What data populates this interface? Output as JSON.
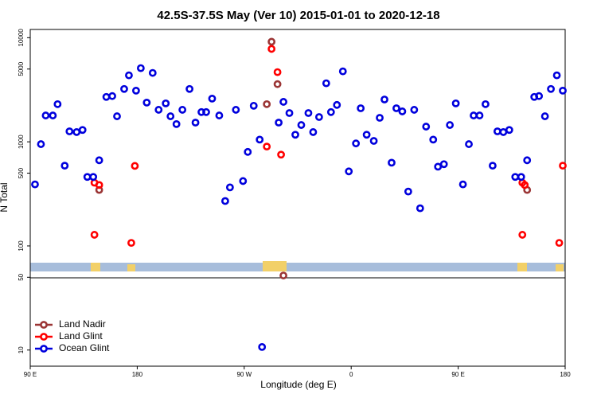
{
  "chart_data": {
    "type": "scatter",
    "title": "42.5S-37.5S May (Ver 10)   2015-01-01 to 2020-12-18",
    "x_label": "Longitude (deg E)",
    "y_label": "N Total",
    "log_y": true,
    "legend": "bottom-left",
    "xlim": [
      90,
      540
    ],
    "xticks": [
      {
        "value": 90,
        "label": "90 E"
      },
      {
        "value": 180,
        "label": "180"
      },
      {
        "value": 270,
        "label": "90 W"
      },
      {
        "value": 360,
        "label": "0"
      },
      {
        "value": 450,
        "label": "90 E"
      },
      {
        "value": 540,
        "label": "180"
      }
    ],
    "ylim": [
      7,
      12000
    ],
    "yticks": [
      10,
      50,
      100,
      500,
      1000,
      5000,
      10000
    ],
    "series": [
      {
        "name": "Land Nadir",
        "color": "#9b3535",
        "x": [
          148,
          289,
          293,
          298,
          303,
          508
        ],
        "values": [
          345,
          2300,
          9150,
          3580,
          52,
          345
        ]
      },
      {
        "name": "Land Glint",
        "color": "#ff0000",
        "x": [
          144,
          148,
          144,
          175,
          178,
          289,
          293,
          298,
          301,
          504,
          506,
          504,
          535,
          538
        ],
        "values": [
          405,
          385,
          128,
          107,
          587,
          900,
          7800,
          4670,
          753,
          405,
          385,
          128,
          107,
          590
        ]
      },
      {
        "name": "Ocean Glint",
        "color": "#0000dd",
        "x": [
          94,
          99,
          103,
          109,
          113,
          119,
          123,
          129,
          134,
          138,
          143,
          148,
          154,
          159,
          163,
          169,
          173,
          179,
          183,
          188,
          193,
          198,
          204,
          208,
          213,
          218,
          224,
          229,
          234,
          238,
          243,
          249,
          254,
          258,
          263,
          269,
          273,
          278,
          283,
          285,
          299,
          303,
          308,
          313,
          318,
          324,
          328,
          333,
          339,
          343,
          348,
          353,
          358,
          364,
          368,
          373,
          379,
          384,
          388,
          394,
          398,
          403,
          408,
          413,
          418,
          423,
          429,
          433,
          438,
          443,
          448,
          454,
          459,
          463,
          468,
          473,
          479,
          483,
          488,
          493,
          498,
          503,
          508,
          514,
          518,
          523,
          528,
          533,
          538
        ],
        "values": [
          390,
          950,
          1790,
          1790,
          2300,
          590,
          1260,
          1240,
          1300,
          460,
          460,
          665,
          2700,
          2750,
          1760,
          3220,
          4350,
          3100,
          5100,
          2380,
          4590,
          2030,
          2340,
          1760,
          1480,
          2030,
          3220,
          1530,
          1930,
          1930,
          2600,
          1790,
          270,
          365,
          2030,
          420,
          800,
          2220,
          1050,
          10.7,
          1530,
          2420,
          1890,
          1170,
          1450,
          1890,
          1240,
          1730,
          3650,
          1930,
          2260,
          4750,
          520,
          965,
          2100,
          1170,
          1020,
          1700,
          2550,
          630,
          2100,
          1960,
          333,
          2030,
          230,
          1400,
          1050,
          577,
          610,
          1450,
          2340,
          390,
          950,
          1790,
          1790,
          2300,
          590,
          1260,
          1240,
          1300,
          460,
          460,
          665,
          2700,
          2750,
          1760,
          3220,
          4350,
          3100
        ]
      }
    ]
  }
}
